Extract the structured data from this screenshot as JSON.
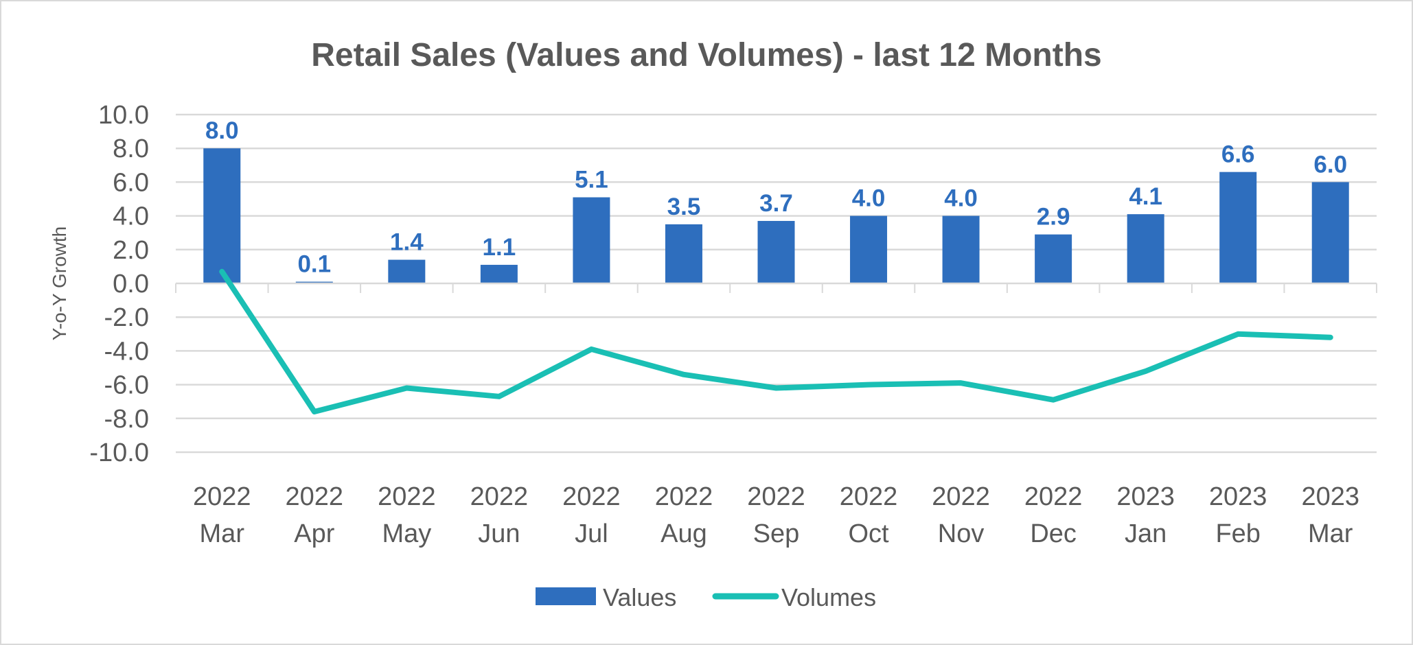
{
  "chart_data": {
    "type": "bar+line",
    "title": "Retail Sales (Values and Volumes) - last 12 Months",
    "xlabel": "",
    "ylabel": "Y-o-Y Growth",
    "ylim": [
      -10,
      10
    ],
    "yticks": [
      "10.0",
      "8.0",
      "6.0",
      "4.0",
      "2.0",
      "0.0",
      "-2.0",
      "-4.0",
      "-6.0",
      "-8.0",
      "-10.0"
    ],
    "ytick_values": [
      10,
      8,
      6,
      4,
      2,
      0,
      -2,
      -4,
      -6,
      -8,
      -10
    ],
    "grid": true,
    "legend_position": "bottom",
    "categories": [
      {
        "year": "2022",
        "month": "Mar"
      },
      {
        "year": "2022",
        "month": "Apr"
      },
      {
        "year": "2022",
        "month": "May"
      },
      {
        "year": "2022",
        "month": "Jun"
      },
      {
        "year": "2022",
        "month": "Jul"
      },
      {
        "year": "2022",
        "month": "Aug"
      },
      {
        "year": "2022",
        "month": "Sep"
      },
      {
        "year": "2022",
        "month": "Oct"
      },
      {
        "year": "2022",
        "month": "Nov"
      },
      {
        "year": "2022",
        "month": "Dec"
      },
      {
        "year": "2023",
        "month": "Jan"
      },
      {
        "year": "2023",
        "month": "Feb"
      },
      {
        "year": "2023",
        "month": "Mar"
      }
    ],
    "series": [
      {
        "name": "Values",
        "type": "bar",
        "color": "#2E6EBE",
        "values": [
          8.0,
          0.1,
          1.4,
          1.1,
          5.1,
          3.5,
          3.7,
          4.0,
          4.0,
          2.9,
          4.1,
          6.6,
          6.0
        ],
        "labels": [
          "8.0",
          "0.1",
          "1.4",
          "1.1",
          "5.1",
          "3.5",
          "3.7",
          "4.0",
          "4.0",
          "2.9",
          "4.1",
          "6.6",
          "6.0"
        ]
      },
      {
        "name": "Volumes",
        "type": "line",
        "color": "#1ABFB4",
        "values": [
          0.7,
          -7.6,
          -6.2,
          -6.7,
          -3.9,
          -5.4,
          -6.2,
          -6.0,
          -5.9,
          -6.9,
          -5.2,
          -3.0,
          -3.2
        ]
      }
    ]
  }
}
